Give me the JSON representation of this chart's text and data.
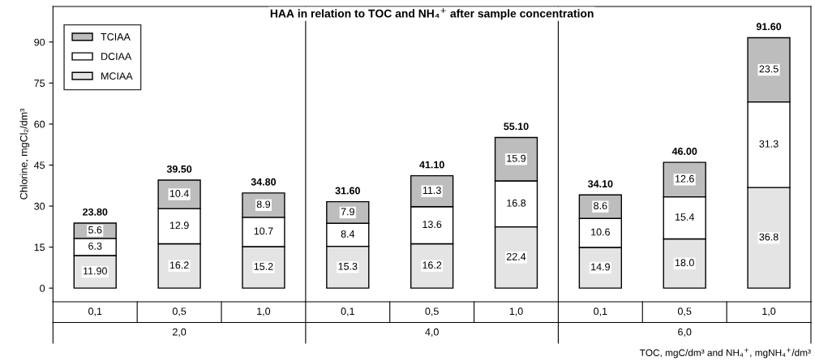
{
  "chart_data": {
    "type": "bar",
    "stacked": true,
    "title": "HAA in relation to TOC and NH₄$^{+}$ after sample concentration",
    "xlabel": "TOC, mgC/dm³ and NH₄$^{+}$, mgNH₄$^{+}$/dm³",
    "ylabel": "Chlorine, mgCl₂/dm³",
    "categories": [
      "0,1",
      "0,5",
      "1,0",
      "0,1",
      "0,5",
      "1,0",
      "0,1",
      "0,5",
      "1,0"
    ],
    "annotations": [
      "2,0",
      "4,0",
      "6,0"
    ],
    "series": [
      {
        "name": "MCIAA",
        "color": "#e4e4e4",
        "values": [
          11.9,
          16.2,
          15.2,
          15.3,
          16.2,
          22.4,
          14.9,
          18.0,
          36.8
        ],
        "value_labels": [
          "11.90",
          "16.2",
          "15.2",
          "15.3",
          "16.2",
          "22.4",
          "14.9",
          "18.0",
          "36.8"
        ]
      },
      {
        "name": "DCIAA",
        "color": "#ffffff",
        "values": [
          6.3,
          12.9,
          10.7,
          8.4,
          13.6,
          16.8,
          10.6,
          15.4,
          31.3
        ],
        "value_labels": [
          "6.3",
          "12.9",
          "10.7",
          "8.4",
          "13.6",
          "16.8",
          "10.6",
          "15.4",
          "31.3"
        ]
      },
      {
        "name": "TCIAA",
        "color": "#bdbdbd",
        "values": [
          5.6,
          10.4,
          8.9,
          7.9,
          11.3,
          15.9,
          8.6,
          12.6,
          23.5
        ],
        "value_labels": [
          "5.6",
          "10.4",
          "8.9",
          "7.9",
          "11.3",
          "15.9",
          "8.6",
          "12.6",
          "23.5"
        ]
      }
    ],
    "totals": [
      "23.80",
      "39.50",
      "34.80",
      "31.60",
      "41.10",
      "55.10",
      "34.10",
      "46.00",
      "91.60"
    ],
    "ylim": [
      -5,
      103
    ],
    "yticks": [
      0,
      15,
      30,
      45,
      60,
      75,
      90
    ],
    "grid": false,
    "legend": "top left"
  }
}
